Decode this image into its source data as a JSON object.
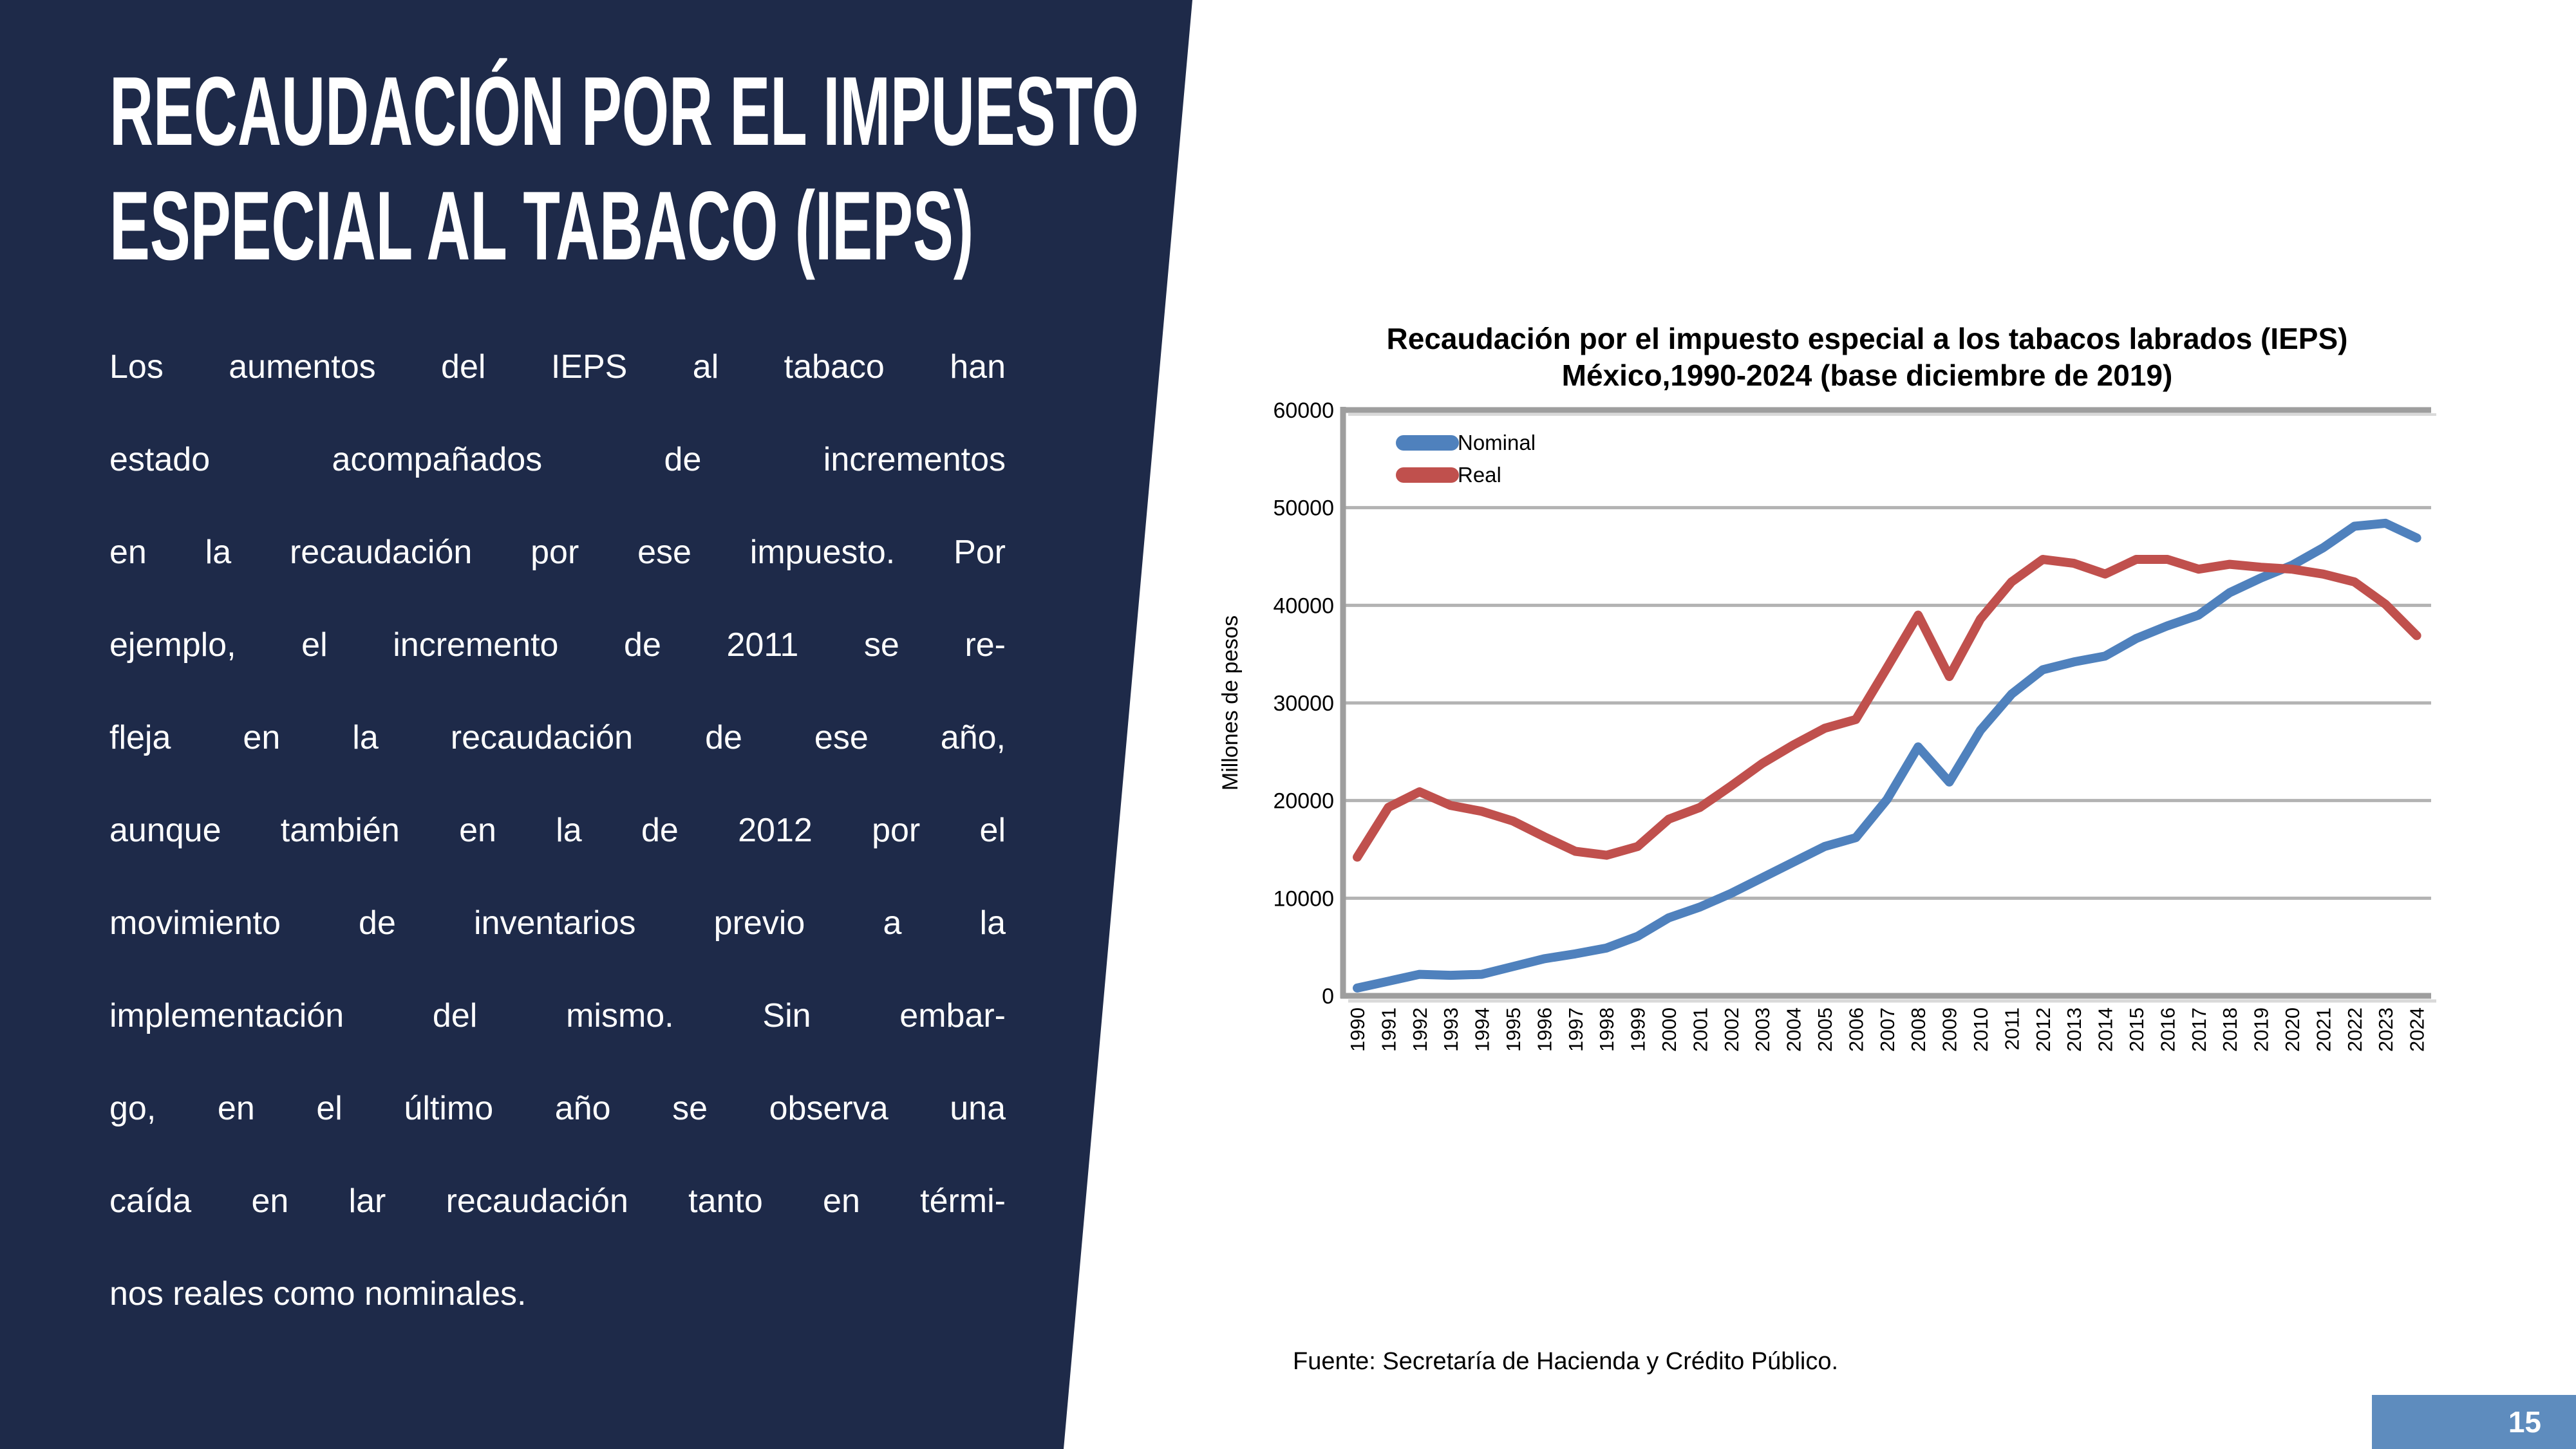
{
  "panel": {
    "title_line1": "RECAUDACIÓN POR EL IMPUESTO",
    "title_line2": "ESPECIAL AL TABACO (IEPS)",
    "body_lines": [
      "Los aumentos del IEPS al tabaco han",
      "estado acompañados de incrementos",
      "en la recaudación por ese impuesto. Por",
      "ejemplo, el incremento de 2011 se re-",
      "fleja en la recaudación de ese año,",
      "aunque también en la de 2012 por el",
      "movimiento de inventarios previo a la",
      "implementación del mismo. Sin embar-",
      "go, en el último año se observa una",
      "caída en lar recaudación tanto en térmi-",
      "nos reales como nominales."
    ],
    "bg_color": "#1e2a49"
  },
  "chart_data": {
    "type": "line",
    "title": "Recaudación por el impuesto especial a los tabacos labrados (IEPS)",
    "subtitle": "México,1990-2024 (base diciembre de 2019)",
    "ylabel": "Millones de pesos",
    "ylim": [
      0,
      60000
    ],
    "ytick_step": 10000,
    "ytick_labels": [
      "0",
      "10000",
      "20000",
      "30000",
      "40000",
      "50000",
      "60000"
    ],
    "grid": true,
    "legend_position": "top-left",
    "categories": [
      "1990",
      "1991",
      "1992",
      "1993",
      "1994",
      "1995",
      "1996",
      "1997",
      "1998",
      "1999",
      "2000",
      "2001",
      "2002",
      "2003",
      "2004",
      "2005",
      "2006",
      "2007",
      "2008",
      "2009",
      "2010",
      "2011",
      "2012",
      "2013",
      "2014",
      "2015",
      "2016",
      "2017",
      "2018",
      "2019",
      "2020",
      "2021",
      "2022",
      "2023",
      "2024"
    ],
    "series": [
      {
        "name": "Nominal",
        "color": "#4f81bd",
        "values": [
          800,
          1500,
          2200,
          2100,
          2200,
          3000,
          3800,
          4300,
          4900,
          6100,
          8000,
          9100,
          10500,
          12100,
          13700,
          15300,
          16200,
          20100,
          25500,
          21900,
          27200,
          30900,
          33400,
          34200,
          34800,
          36600,
          37900,
          39000,
          41300,
          42800,
          44100,
          45900,
          48100,
          48400,
          46900
        ]
      },
      {
        "name": "Real",
        "color": "#c0504d",
        "values": [
          14200,
          19300,
          20900,
          19500,
          18900,
          17900,
          16300,
          14800,
          14400,
          15300,
          18100,
          19300,
          21500,
          23800,
          25700,
          27400,
          28300,
          33600,
          39000,
          32700,
          38600,
          42400,
          44700,
          44300,
          43200,
          44700,
          44700,
          43700,
          44200,
          43900,
          43700,
          43200,
          42400,
          40100,
          36900
        ]
      }
    ],
    "colors": {
      "grid": "#b3b3b3",
      "axis": "#9e9e9e",
      "axis_shadow": "#d9d9d9"
    }
  },
  "source_note": "Fuente: Secretaría de Hacienda y Crédito Público.",
  "page": {
    "number": "15",
    "badge_color": "#5e8cbe"
  }
}
